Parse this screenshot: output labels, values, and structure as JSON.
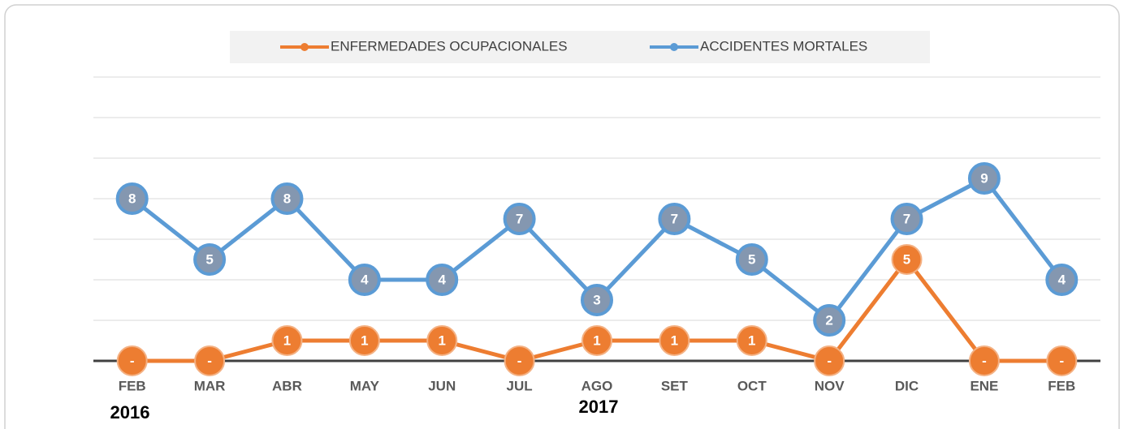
{
  "chart_data": {
    "type": "line",
    "categories": [
      "FEB",
      "MAR",
      "ABR",
      "MAY",
      "JUN",
      "JUL",
      "AGO",
      "SET",
      "OCT",
      "NOV",
      "DIC",
      "ENE",
      "FEB"
    ],
    "series": [
      {
        "name": "ENFERMEDADES OCUPACIONALES",
        "color": "#ed7d31",
        "values": [
          0,
          0,
          1,
          1,
          1,
          0,
          1,
          1,
          1,
          0,
          5,
          0,
          0
        ],
        "value_labels": [
          "-",
          "-",
          "1",
          "1",
          "1",
          "-",
          "1",
          "1",
          "1",
          "-",
          "5",
          "-",
          "-"
        ]
      },
      {
        "name": "ACCIDENTES MORTALES",
        "color": "#5b9bd5",
        "values": [
          8,
          5,
          8,
          4,
          4,
          7,
          3,
          7,
          5,
          2,
          7,
          9,
          4
        ]
      }
    ],
    "annotations": [
      "2016",
      "2017"
    ],
    "ylim": [
      0,
      14
    ],
    "yticks": [
      0,
      2,
      4,
      6,
      8,
      10,
      12,
      14
    ],
    "grid": true,
    "legend": "top"
  }
}
